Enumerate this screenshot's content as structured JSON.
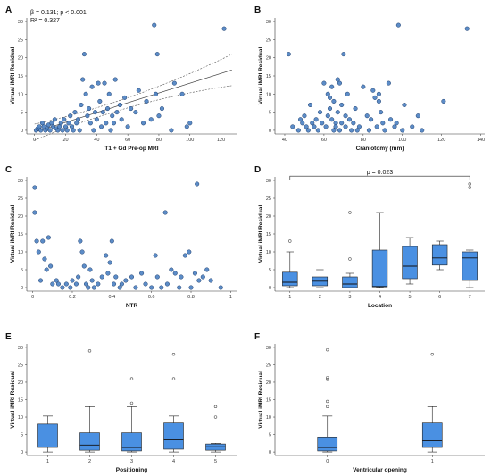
{
  "colors": {
    "point_fill": "#4a7fc1",
    "point_stroke": "#1f3f6e",
    "box_fill": "#4a90e2",
    "box_stroke": "#1f3f6e",
    "outlier": "#555555",
    "axis": "#333333"
  },
  "chart_data": [
    {
      "id": "A",
      "letter": "A",
      "type": "scatter",
      "xlabel": "T1 + Gd Pre-op MRI",
      "ylabel": "Virtual iMRI Residual",
      "xlim": [
        -5,
        130
      ],
      "ylim": [
        -1,
        31
      ],
      "xticks": [
        0,
        20,
        40,
        60,
        80,
        100,
        120
      ],
      "yticks": [
        0,
        5,
        10,
        15,
        20,
        25,
        30
      ],
      "annotations": [
        "β = 0.131; p < 0.001",
        "R² = 0.327"
      ],
      "regression": {
        "intercept": -0.5,
        "slope": 0.135,
        "x_range": [
          0,
          127
        ]
      },
      "points": [
        [
          1,
          0
        ],
        [
          2,
          0.5
        ],
        [
          3,
          1
        ],
        [
          4,
          0
        ],
        [
          5,
          2
        ],
        [
          6,
          1
        ],
        [
          7,
          0
        ],
        [
          8,
          0.5
        ],
        [
          9,
          1.5
        ],
        [
          10,
          0
        ],
        [
          11,
          2
        ],
        [
          12,
          1
        ],
        [
          13,
          3
        ],
        [
          14,
          0.5
        ],
        [
          15,
          0
        ],
        [
          16,
          1
        ],
        [
          17,
          2
        ],
        [
          18,
          0
        ],
        [
          19,
          3
        ],
        [
          20,
          1
        ],
        [
          21,
          0
        ],
        [
          22,
          2
        ],
        [
          23,
          4
        ],
        [
          24,
          1
        ],
        [
          25,
          0
        ],
        [
          26,
          5
        ],
        [
          27,
          2
        ],
        [
          28,
          3
        ],
        [
          29,
          0
        ],
        [
          30,
          7
        ],
        [
          31,
          14
        ],
        [
          32,
          21
        ],
        [
          33,
          10
        ],
        [
          34,
          4
        ],
        [
          35,
          6
        ],
        [
          36,
          2
        ],
        [
          37,
          12
        ],
        [
          38,
          0
        ],
        [
          39,
          5
        ],
        [
          40,
          3
        ],
        [
          41,
          13
        ],
        [
          42,
          8
        ],
        [
          43,
          1
        ],
        [
          44,
          5
        ],
        [
          45,
          13
        ],
        [
          46,
          2
        ],
        [
          47,
          6
        ],
        [
          48,
          10
        ],
        [
          49,
          0
        ],
        [
          50,
          4
        ],
        [
          51,
          2
        ],
        [
          52,
          14
        ],
        [
          53,
          5
        ],
        [
          55,
          7
        ],
        [
          56,
          3
        ],
        [
          58,
          9
        ],
        [
          60,
          1
        ],
        [
          62,
          6
        ],
        [
          65,
          5
        ],
        [
          67,
          11
        ],
        [
          70,
          2
        ],
        [
          72,
          8
        ],
        [
          75,
          3
        ],
        [
          77,
          29
        ],
        [
          78,
          10
        ],
        [
          79,
          21
        ],
        [
          80,
          4
        ],
        [
          82,
          6
        ],
        [
          88,
          0
        ],
        [
          90,
          13
        ],
        [
          95,
          10
        ],
        [
          98,
          1
        ],
        [
          100,
          2
        ],
        [
          122,
          28
        ]
      ]
    },
    {
      "id": "B",
      "letter": "B",
      "type": "scatter",
      "xlabel": "Craniotomy (mm)",
      "ylabel": "Virtual iMRI Residual",
      "xlim": [
        35,
        142
      ],
      "ylim": [
        -1,
        31
      ],
      "xticks": [
        40,
        60,
        80,
        100,
        120,
        140
      ],
      "yticks": [
        0,
        5,
        10,
        15,
        20,
        25,
        30
      ],
      "annotations": [],
      "points": [
        [
          42,
          21
        ],
        [
          44,
          1
        ],
        [
          47,
          0
        ],
        [
          48,
          3
        ],
        [
          49,
          2
        ],
        [
          50,
          4
        ],
        [
          51,
          1
        ],
        [
          52,
          0
        ],
        [
          53,
          7
        ],
        [
          54,
          2
        ],
        [
          55,
          1
        ],
        [
          56,
          3
        ],
        [
          57,
          0
        ],
        [
          58,
          5
        ],
        [
          59,
          2
        ],
        [
          60,
          13
        ],
        [
          61,
          1
        ],
        [
          62,
          4
        ],
        [
          62,
          10
        ],
        [
          63,
          9
        ],
        [
          63,
          6
        ],
        [
          64,
          12
        ],
        [
          64,
          3
        ],
        [
          65,
          8
        ],
        [
          65,
          0
        ],
        [
          66,
          2
        ],
        [
          66,
          1
        ],
        [
          67,
          14
        ],
        [
          67,
          5
        ],
        [
          68,
          13
        ],
        [
          68,
          0
        ],
        [
          69,
          7
        ],
        [
          69,
          2
        ],
        [
          70,
          21
        ],
        [
          71,
          4
        ],
        [
          71,
          1
        ],
        [
          72,
          10
        ],
        [
          73,
          3
        ],
        [
          74,
          0
        ],
        [
          75,
          2
        ],
        [
          76,
          6
        ],
        [
          77,
          0
        ],
        [
          78,
          1
        ],
        [
          80,
          12
        ],
        [
          82,
          4
        ],
        [
          83,
          0
        ],
        [
          84,
          3
        ],
        [
          85,
          11
        ],
        [
          86,
          9
        ],
        [
          87,
          1
        ],
        [
          88,
          10
        ],
        [
          88,
          8
        ],
        [
          89,
          5
        ],
        [
          90,
          2
        ],
        [
          91,
          0
        ],
        [
          93,
          13
        ],
        [
          94,
          3
        ],
        [
          96,
          1
        ],
        [
          97,
          2
        ],
        [
          98,
          29
        ],
        [
          100,
          0
        ],
        [
          101,
          7
        ],
        [
          105,
          1
        ],
        [
          108,
          4
        ],
        [
          110,
          0
        ],
        [
          121,
          8
        ],
        [
          133,
          28
        ]
      ]
    },
    {
      "id": "C",
      "letter": "C",
      "type": "scatter",
      "xlabel": "NTR",
      "ylabel": "Virtual iMRI Residual",
      "xlim": [
        -0.03,
        1.03
      ],
      "ylim": [
        -1,
        31
      ],
      "xticks": [
        0.0,
        0.2,
        0.4,
        0.6,
        0.8,
        1.0
      ],
      "yticks": [
        0,
        5,
        10,
        15,
        20,
        25,
        30
      ],
      "annotations": [],
      "points": [
        [
          0.01,
          28
        ],
        [
          0.01,
          21
        ],
        [
          0.02,
          13
        ],
        [
          0.03,
          10
        ],
        [
          0.04,
          2
        ],
        [
          0.05,
          13
        ],
        [
          0.06,
          8
        ],
        [
          0.07,
          5
        ],
        [
          0.08,
          14
        ],
        [
          0.09,
          6
        ],
        [
          0.1,
          1
        ],
        [
          0.12,
          2
        ],
        [
          0.13,
          1
        ],
        [
          0.15,
          0
        ],
        [
          0.17,
          1
        ],
        [
          0.19,
          0
        ],
        [
          0.2,
          2
        ],
        [
          0.22,
          1
        ],
        [
          0.23,
          3
        ],
        [
          0.24,
          13
        ],
        [
          0.25,
          10
        ],
        [
          0.26,
          6
        ],
        [
          0.27,
          1
        ],
        [
          0.28,
          0
        ],
        [
          0.29,
          5
        ],
        [
          0.3,
          2
        ],
        [
          0.31,
          0
        ],
        [
          0.33,
          1
        ],
        [
          0.35,
          3
        ],
        [
          0.37,
          9
        ],
        [
          0.38,
          4
        ],
        [
          0.39,
          7
        ],
        [
          0.4,
          13
        ],
        [
          0.41,
          1
        ],
        [
          0.42,
          3
        ],
        [
          0.44,
          0
        ],
        [
          0.45,
          1
        ],
        [
          0.47,
          2
        ],
        [
          0.5,
          3
        ],
        [
          0.52,
          0
        ],
        [
          0.55,
          4
        ],
        [
          0.57,
          1
        ],
        [
          0.6,
          0
        ],
        [
          0.62,
          9
        ],
        [
          0.63,
          3
        ],
        [
          0.65,
          0
        ],
        [
          0.67,
          21
        ],
        [
          0.68,
          1
        ],
        [
          0.7,
          5
        ],
        [
          0.72,
          4
        ],
        [
          0.74,
          0
        ],
        [
          0.75,
          3
        ],
        [
          0.77,
          9
        ],
        [
          0.79,
          10
        ],
        [
          0.8,
          0
        ],
        [
          0.82,
          4
        ],
        [
          0.83,
          29
        ],
        [
          0.84,
          2
        ],
        [
          0.86,
          3
        ],
        [
          0.88,
          5
        ],
        [
          0.9,
          2
        ],
        [
          0.95,
          0
        ]
      ]
    },
    {
      "id": "D",
      "letter": "D",
      "type": "box",
      "xlabel": "Location",
      "ylabel": "Virtual iMRI Residual",
      "ylim": [
        -1,
        31
      ],
      "yticks": [
        0,
        5,
        10,
        15,
        20,
        25,
        30
      ],
      "categories": [
        "1",
        "2",
        "3",
        "4",
        "5",
        "6",
        "7"
      ],
      "boxes": [
        {
          "min": 0,
          "q1": 0.5,
          "median": 1.5,
          "q3": 4.3,
          "max": 10,
          "outliers": [
            13
          ]
        },
        {
          "min": 0,
          "q1": 0.5,
          "median": 1.8,
          "q3": 3,
          "max": 5,
          "outliers": []
        },
        {
          "min": 0,
          "q1": 0,
          "median": 1,
          "q3": 3,
          "max": 4,
          "outliers": [
            8,
            21
          ]
        },
        {
          "min": 0,
          "q1": 0.2,
          "median": 0.3,
          "q3": 10.5,
          "max": 21,
          "outliers": []
        },
        {
          "min": 1,
          "q1": 2.5,
          "median": 6,
          "q3": 11.5,
          "max": 14,
          "outliers": []
        },
        {
          "min": 5,
          "q1": 6.3,
          "median": 8.3,
          "q3": 12,
          "max": 13,
          "outliers": []
        },
        {
          "min": 0,
          "q1": 2,
          "median": 8.3,
          "q3": 10,
          "max": 10.5,
          "outliers": [
            28,
            29
          ]
        }
      ],
      "bracket": {
        "from": "1",
        "to": "7",
        "y": 31.2,
        "label": "p = 0.023"
      }
    },
    {
      "id": "E",
      "letter": "E",
      "type": "box",
      "xlabel": "Positioning",
      "ylabel": "Virtual iMRI Residual",
      "ylim": [
        -1,
        31
      ],
      "yticks": [
        0,
        5,
        10,
        15,
        20,
        25,
        30
      ],
      "categories": [
        "1",
        "2",
        "3",
        "4",
        "5"
      ],
      "boxes": [
        {
          "min": 0,
          "q1": 1.3,
          "median": 4,
          "q3": 8,
          "max": 10.3,
          "outliers": []
        },
        {
          "min": 0,
          "q1": 0.5,
          "median": 2,
          "q3": 5.5,
          "max": 13,
          "outliers": [
            29
          ]
        },
        {
          "min": 0,
          "q1": 0.3,
          "median": 1.3,
          "q3": 5.5,
          "max": 13,
          "outliers": [
            14,
            21
          ]
        },
        {
          "min": 0,
          "q1": 0.8,
          "median": 3.5,
          "q3": 8.3,
          "max": 10.3,
          "outliers": [
            21,
            28
          ]
        },
        {
          "min": 0,
          "q1": 0.5,
          "median": 1.5,
          "q3": 2.3,
          "max": 2.5,
          "outliers": [
            10,
            13
          ]
        }
      ]
    },
    {
      "id": "F",
      "letter": "F",
      "type": "box",
      "xlabel": "Ventricular opening",
      "ylabel": "Virtual iMRI Residual",
      "ylim": [
        -1,
        31
      ],
      "yticks": [
        0,
        5,
        10,
        15,
        20,
        25,
        30
      ],
      "categories": [
        "0",
        "1"
      ],
      "boxes": [
        {
          "min": 0,
          "q1": 0.3,
          "median": 1.3,
          "q3": 4.3,
          "max": 10.3,
          "outliers": [
            13,
            14.5,
            20.8,
            21.3,
            29.3
          ]
        },
        {
          "min": 0,
          "q1": 1.3,
          "median": 3.2,
          "q3": 8.3,
          "max": 13,
          "outliers": [
            28
          ]
        }
      ]
    }
  ]
}
